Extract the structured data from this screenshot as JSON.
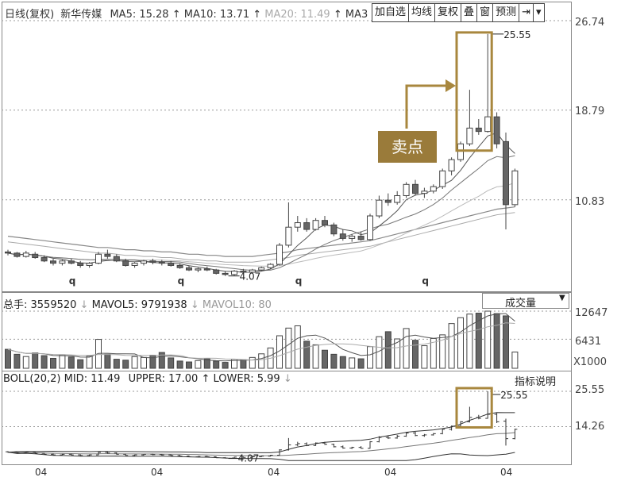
{
  "header": {
    "prefix": "日线(复权)",
    "stock_name": "新华传媒",
    "ma5": "MA5: 15.28",
    "ma10": "MA10: 13.71",
    "ma20": "MA20: 11.49",
    "ma30": "MA3"
  },
  "toolbar": {
    "items": [
      "加自选",
      "均线",
      "复权",
      "叠",
      "窗",
      "预测",
      "⇥",
      "▾"
    ]
  },
  "price_axis": [
    "26.74",
    "18.79",
    "10.83"
  ],
  "annotations": {
    "high_price": "25.55",
    "low_price": "4.07",
    "sell_point": "卖点",
    "q_markers": [
      "q",
      "q",
      "q",
      "q"
    ]
  },
  "volume_panel": {
    "legend_total": "总手: 3559520",
    "legend_mavol5": "MAVOL5: 9791938",
    "legend_mavol10": "MAVOL10: 80",
    "selector": "成交量",
    "axis": [
      "12647",
      "6431",
      "X1000"
    ]
  },
  "boll_panel": {
    "legend_main": "BOLL(20,2) MID: 11.49",
    "legend_upper": "UPPER: 17.00",
    "legend_lower": "LOWER: 5.99",
    "indicator_button": "指标说明",
    "axis": [
      "25.55",
      "14.26"
    ],
    "high_label": "25.55",
    "low_label": "4.07"
  },
  "bottom_axis": [
    "04",
    "04",
    "04",
    "04",
    "04"
  ],
  "colors": {
    "sell_box": "#a8873e",
    "up_candle": "#ffffff",
    "down_candle": "#666666"
  },
  "chart_data": {
    "type": "candlestick",
    "candles": [
      [
        6.2,
        6.4,
        5.9,
        6.1
      ],
      [
        6.1,
        6.2,
        5.7,
        5.8
      ],
      [
        5.8,
        6.3,
        5.7,
        6.1
      ],
      [
        6.0,
        6.2,
        5.6,
        5.7
      ],
      [
        5.7,
        5.9,
        5.3,
        5.4
      ],
      [
        5.4,
        5.6,
        5.0,
        5.2
      ],
      [
        5.2,
        5.5,
        5.0,
        5.4
      ],
      [
        5.4,
        5.6,
        5.1,
        5.2
      ],
      [
        5.2,
        5.4,
        4.8,
        5.0
      ],
      [
        5.0,
        5.3,
        4.8,
        5.2
      ],
      [
        5.2,
        6.2,
        5.1,
        6.0
      ],
      [
        6.0,
        6.4,
        5.6,
        5.8
      ],
      [
        5.8,
        6.0,
        5.3,
        5.4
      ],
      [
        5.4,
        5.6,
        4.9,
        5.0
      ],
      [
        5.0,
        5.3,
        4.8,
        5.2
      ],
      [
        5.2,
        5.5,
        5.0,
        5.4
      ],
      [
        5.4,
        5.6,
        5.1,
        5.3
      ],
      [
        5.3,
        5.5,
        5.0,
        5.2
      ],
      [
        5.2,
        5.4,
        4.9,
        5.0
      ],
      [
        5.0,
        5.2,
        4.7,
        4.8
      ],
      [
        4.8,
        5.0,
        4.5,
        4.6
      ],
      [
        4.6,
        4.8,
        4.4,
        4.7
      ],
      [
        4.7,
        4.9,
        4.5,
        4.6
      ],
      [
        4.6,
        4.7,
        4.2,
        4.3
      ],
      [
        4.3,
        4.5,
        4.07,
        4.2
      ],
      [
        4.2,
        4.6,
        4.1,
        4.5
      ],
      [
        4.5,
        4.7,
        4.3,
        4.4
      ],
      [
        4.4,
        4.7,
        4.3,
        4.6
      ],
      [
        4.6,
        4.9,
        4.5,
        4.8
      ],
      [
        4.8,
        5.2,
        4.7,
        5.1
      ],
      [
        5.1,
        7.0,
        5.0,
        6.8
      ],
      [
        6.8,
        10.6,
        6.6,
        8.4
      ],
      [
        8.4,
        9.4,
        8.0,
        8.8
      ],
      [
        8.8,
        9.2,
        8.0,
        8.2
      ],
      [
        8.2,
        9.2,
        8.1,
        9.0
      ],
      [
        9.0,
        9.4,
        8.4,
        8.6
      ],
      [
        8.6,
        8.8,
        7.6,
        7.8
      ],
      [
        7.8,
        8.2,
        7.2,
        7.4
      ],
      [
        7.4,
        7.8,
        7.1,
        7.6
      ],
      [
        7.6,
        8.0,
        7.2,
        7.3
      ],
      [
        7.3,
        9.6,
        7.2,
        9.4
      ],
      [
        9.4,
        11.2,
        9.2,
        10.8
      ],
      [
        10.8,
        11.4,
        10.3,
        10.6
      ],
      [
        10.6,
        11.6,
        10.4,
        11.2
      ],
      [
        11.2,
        12.4,
        11.0,
        12.2
      ],
      [
        12.2,
        12.6,
        11.2,
        11.4
      ],
      [
        11.4,
        11.9,
        11.0,
        11.6
      ],
      [
        11.6,
        12.2,
        11.4,
        12.0
      ],
      [
        12.0,
        13.6,
        11.8,
        13.4
      ],
      [
        13.4,
        14.6,
        13.0,
        14.4
      ],
      [
        14.4,
        16.0,
        14.2,
        15.8
      ],
      [
        15.8,
        20.6,
        15.6,
        17.2
      ],
      [
        17.2,
        18.0,
        16.6,
        16.9
      ],
      [
        16.9,
        25.55,
        16.8,
        18.2
      ],
      [
        18.2,
        18.6,
        15.4,
        15.8
      ],
      [
        16.0,
        16.8,
        8.2,
        10.4
      ],
      [
        10.4,
        13.6,
        10.2,
        13.4
      ]
    ],
    "volume": [
      4.2,
      3.1,
      2.6,
      3.4,
      2.8,
      2.2,
      3.0,
      2.5,
      1.9,
      2.7,
      6.4,
      3.1,
      2.0,
      1.8,
      2.6,
      2.4,
      2.9,
      3.5,
      2.3,
      1.6,
      1.4,
      1.7,
      2.1,
      1.6,
      1.3,
      2.0,
      1.9,
      2.4,
      3.2,
      4.5,
      7.2,
      8.9,
      9.4,
      6.0,
      5.2,
      4.0,
      3.1,
      2.6,
      2.3,
      2.1,
      4.8,
      7.0,
      8.1,
      6.5,
      8.8,
      6.2,
      5.0,
      6.6,
      7.4,
      9.9,
      11.2,
      12.0,
      12.2,
      12.647,
      12.1,
      11.6,
      3.6
    ],
    "ylim_price": [
      4.07,
      26.74
    ],
    "ylim_volume": [
      0,
      12647
    ]
  }
}
